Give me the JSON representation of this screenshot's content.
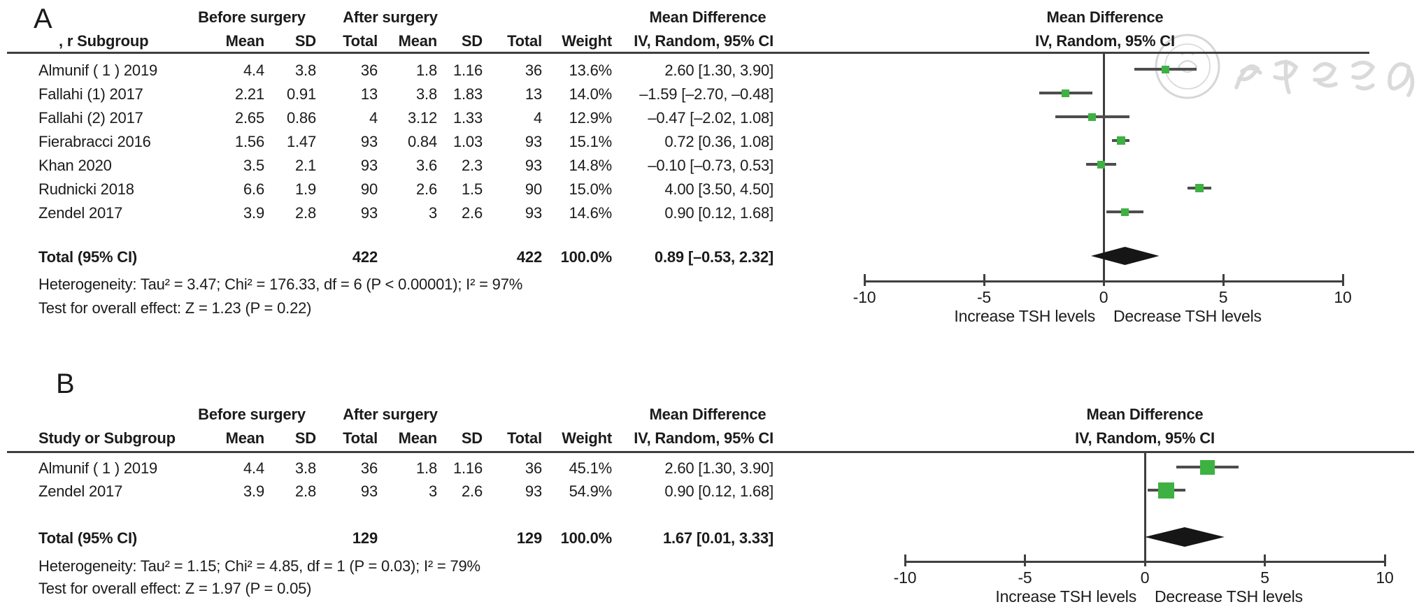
{
  "figure": {
    "description_left_axis_label": "Increase TSH levels",
    "description_right_axis_label": "Decrease TSH levels"
  },
  "colors": {
    "square": "#3db242",
    "ci_line": "#4d4d4d",
    "diamond": "#161616",
    "rule": "#3f3f3f",
    "text": "#1b1b1b",
    "watermark": "#d4d4d4"
  },
  "watermark": {
    "text": "中华医学会",
    "seal": "chinese-medical-association-seal"
  },
  "chart_data": [
    {
      "type": "forest",
      "panel_label": "A",
      "effect_label": "Mean Difference",
      "method_label": "IV, Random, 95% CI",
      "group_before": "Before surgery",
      "group_after": "After surgery",
      "columns": {
        "study": ", r Subgroup",
        "mean": "Mean",
        "sd": "SD",
        "total": "Total",
        "weight": "Weight"
      },
      "studies": [
        {
          "name": "Almunif ( 1 )  2019",
          "mean_before": "4.4",
          "sd_before": "3.8",
          "total_before": "36",
          "mean_after": "1.8",
          "sd_after": "1.16",
          "total_after": "36",
          "weight": "13.6%",
          "weight_pct": 13.6,
          "ci_label": "2.60 [1.30, 3.90]",
          "md": 2.6,
          "ci_low": 1.3,
          "ci_high": 3.9
        },
        {
          "name": "Fallahi (1) 2017",
          "mean_before": "2.21",
          "sd_before": "0.91",
          "total_before": "13",
          "mean_after": "3.8",
          "sd_after": "1.83",
          "total_after": "13",
          "weight": "14.0%",
          "weight_pct": 14.0,
          "ci_label": "–1.59 [–2.70, –0.48]",
          "md": -1.59,
          "ci_low": -2.7,
          "ci_high": -0.48
        },
        {
          "name": "Fallahi (2) 2017",
          "mean_before": "2.65",
          "sd_before": "0.86",
          "total_before": "4",
          "mean_after": "3.12",
          "sd_after": "1.33",
          "total_after": "4",
          "weight": "12.9%",
          "weight_pct": 12.9,
          "ci_label": "–0.47 [–2.02, 1.08]",
          "md": -0.47,
          "ci_low": -2.02,
          "ci_high": 1.08
        },
        {
          "name": "Fierabracci 2016",
          "mean_before": "1.56",
          "sd_before": "1.47",
          "total_before": "93",
          "mean_after": "0.84",
          "sd_after": "1.03",
          "total_after": "93",
          "weight": "15.1%",
          "weight_pct": 15.1,
          "ci_label": "0.72 [0.36, 1.08]",
          "md": 0.72,
          "ci_low": 0.36,
          "ci_high": 1.08
        },
        {
          "name": "Khan 2020",
          "mean_before": "3.5",
          "sd_before": "2.1",
          "total_before": "93",
          "mean_after": "3.6",
          "sd_after": "2.3",
          "total_after": "93",
          "weight": "14.8%",
          "weight_pct": 14.8,
          "ci_label": "–0.10 [–0.73, 0.53]",
          "md": -0.1,
          "ci_low": -0.73,
          "ci_high": 0.53
        },
        {
          "name": "Rudnicki 2018",
          "mean_before": "6.6",
          "sd_before": "1.9",
          "total_before": "90",
          "mean_after": "2.6",
          "sd_after": "1.5",
          "total_after": "90",
          "weight": "15.0%",
          "weight_pct": 15.0,
          "ci_label": "4.00 [3.50, 4.50]",
          "md": 4.0,
          "ci_low": 3.5,
          "ci_high": 4.5
        },
        {
          "name": "Zendel 2017",
          "mean_before": "3.9",
          "sd_before": "2.8",
          "total_before": "93",
          "mean_after": "3",
          "sd_after": "2.6",
          "total_after": "93",
          "weight": "14.6%",
          "weight_pct": 14.6,
          "ci_label": "0.90 [0.12, 1.68]",
          "md": 0.9,
          "ci_low": 0.12,
          "ci_high": 1.68
        }
      ],
      "total": {
        "label": "Total (95% CI)",
        "total_before": "422",
        "total_after": "422",
        "weight": "100.0%",
        "ci_label": "0.89 [–0.53, 2.32]",
        "md": 0.89,
        "ci_low": -0.53,
        "ci_high": 2.32
      },
      "heterogeneity": "Heterogeneity: Tau² = 3.47; Chi² = 176.33, df = 6 (P < 0.00001); I² = 97%",
      "overall_effect": "Test for overall effect: Z = 1.23 (P = 0.22)",
      "axis": {
        "min": -10,
        "max": 10,
        "tick_values": [
          -10,
          -5,
          0,
          5,
          10
        ],
        "tick_labels": [
          "-10",
          "-5",
          "0",
          "5",
          "10"
        ],
        "left_label": "Increase TSH levels",
        "right_label": "Decrease TSH levels"
      }
    },
    {
      "type": "forest",
      "panel_label": "B",
      "effect_label": "Mean Difference",
      "method_label": "IV, Random, 95% CI",
      "group_before": "Before surgery",
      "group_after": "After surgery",
      "columns": {
        "study": "Study or Subgroup",
        "mean": "Mean",
        "sd": "SD",
        "total": "Total",
        "weight": "Weight"
      },
      "studies": [
        {
          "name": "Almunif ( 1 )  2019",
          "mean_before": "4.4",
          "sd_before": "3.8",
          "total_before": "36",
          "mean_after": "1.8",
          "sd_after": "1.16",
          "total_after": "36",
          "weight": "45.1%",
          "weight_pct": 45.1,
          "ci_label": "2.60 [1.30, 3.90]",
          "md": 2.6,
          "ci_low": 1.3,
          "ci_high": 3.9
        },
        {
          "name": "Zendel 2017",
          "mean_before": "3.9",
          "sd_before": "2.8",
          "total_before": "93",
          "mean_after": "3",
          "sd_after": "2.6",
          "total_after": "93",
          "weight": "54.9%",
          "weight_pct": 54.9,
          "ci_label": "0.90 [0.12, 1.68]",
          "md": 0.9,
          "ci_low": 0.12,
          "ci_high": 1.68
        }
      ],
      "total": {
        "label": "Total (95% CI)",
        "total_before": "129",
        "total_after": "129",
        "weight": "100.0%",
        "ci_label": "1.67 [0.01, 3.33]",
        "md": 1.67,
        "ci_low": 0.01,
        "ci_high": 3.33
      },
      "heterogeneity": "Heterogeneity: Tau² = 1.15; Chi² = 4.85, df = 1 (P = 0.03); I² = 79%",
      "overall_effect": "Test for overall effect: Z = 1.97 (P = 0.05)",
      "axis": {
        "min": -10,
        "max": 10,
        "tick_values": [
          -10,
          -5,
          0,
          5,
          10
        ],
        "tick_labels": [
          "-10",
          "-5",
          "0",
          "5",
          "10"
        ],
        "left_label": "Increase TSH levels",
        "right_label": "Decrease TSH levels"
      }
    }
  ]
}
